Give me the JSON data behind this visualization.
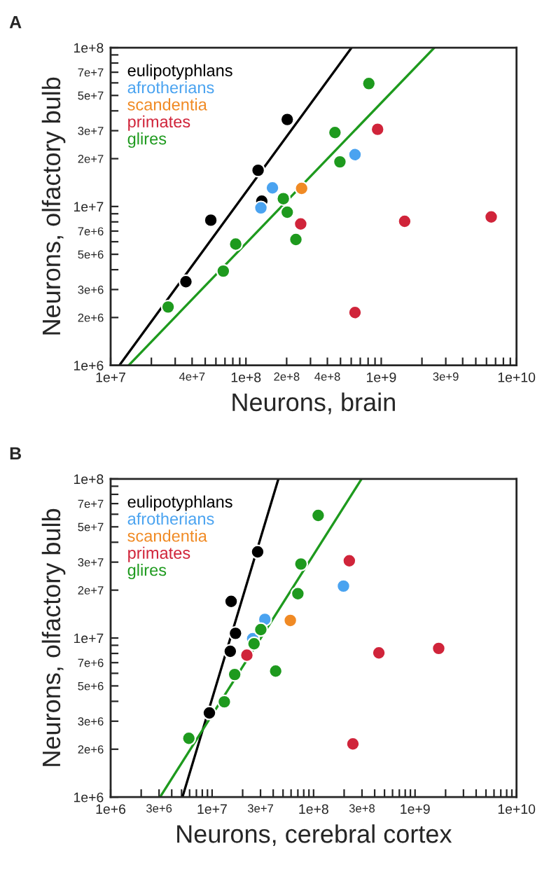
{
  "chart_data": [
    {
      "type": "scatter",
      "title": "A",
      "xlabel": "Neurons, brain",
      "ylabel": "Neurons, olfactory bulb",
      "log": "xy",
      "grid": false,
      "legend": "top left",
      "marker": "circle",
      "xlim": [
        10000000.0,
        10000000000.0
      ],
      "ylim": [
        1000000.0,
        100000000.0
      ],
      "xticks": [
        {
          "value": 10000000.0,
          "label": "1e+7"
        },
        {
          "value": 20000000.0,
          "label": null
        },
        {
          "value": 30000000.0,
          "label": null
        },
        {
          "value": 40000000.0,
          "label": "4e+7"
        },
        {
          "value": 50000000.0,
          "label": null
        },
        {
          "value": 60000000.0,
          "label": null
        },
        {
          "value": 70000000.0,
          "label": null
        },
        {
          "value": 80000000.0,
          "label": null
        },
        {
          "value": 90000000.0,
          "label": null
        },
        {
          "value": 100000000.0,
          "label": "1e+8"
        },
        {
          "value": 200000000.0,
          "label": "2e+8"
        },
        {
          "value": 300000000.0,
          "label": null
        },
        {
          "value": 400000000.0,
          "label": "4e+8"
        },
        {
          "value": 500000000.0,
          "label": null
        },
        {
          "value": 600000000.0,
          "label": null
        },
        {
          "value": 700000000.0,
          "label": null
        },
        {
          "value": 800000000.0,
          "label": null
        },
        {
          "value": 900000000.0,
          "label": null
        },
        {
          "value": 1000000000.0,
          "label": "1e+9"
        },
        {
          "value": 2000000000.0,
          "label": null
        },
        {
          "value": 3000000000.0,
          "label": "3e+9"
        },
        {
          "value": 4000000000.0,
          "label": null
        },
        {
          "value": 5000000000.0,
          "label": null
        },
        {
          "value": 6000000000.0,
          "label": null
        },
        {
          "value": 7000000000.0,
          "label": null
        },
        {
          "value": 8000000000.0,
          "label": null
        },
        {
          "value": 9000000000.0,
          "label": null
        },
        {
          "value": 10000000000.0,
          "label": "1e+10"
        }
      ],
      "yticks": [
        {
          "value": 1000000.0,
          "label": "1e+6"
        },
        {
          "value": 2000000.0,
          "label": "2e+6"
        },
        {
          "value": 3000000.0,
          "label": "3e+6"
        },
        {
          "value": 4000000.0,
          "label": null
        },
        {
          "value": 5000000.0,
          "label": "5e+6"
        },
        {
          "value": 6000000.0,
          "label": null
        },
        {
          "value": 7000000.0,
          "label": "7e+6"
        },
        {
          "value": 8000000.0,
          "label": null
        },
        {
          "value": 9000000.0,
          "label": null
        },
        {
          "value": 10000000.0,
          "label": "1e+7"
        },
        {
          "value": 20000000.0,
          "label": "2e+7"
        },
        {
          "value": 30000000.0,
          "label": "3e+7"
        },
        {
          "value": 40000000.0,
          "label": null
        },
        {
          "value": 50000000.0,
          "label": "5e+7"
        },
        {
          "value": 60000000.0,
          "label": null
        },
        {
          "value": 70000000.0,
          "label": "7e+7"
        },
        {
          "value": 80000000.0,
          "label": null
        },
        {
          "value": 90000000.0,
          "label": null
        },
        {
          "value": 100000000.0,
          "label": "1e+8"
        }
      ],
      "series": [
        {
          "type": "line",
          "marker": "none",
          "color": "#000000",
          "x": [
            11600000.0,
            604000000.0
          ],
          "values": [
            1000000.0,
            100000000.0
          ]
        },
        {
          "type": "line",
          "marker": "none",
          "color": "#1e9a1e",
          "x": [
            13600000.0,
            2470000000.0
          ],
          "values": [
            1000000.0,
            100000000.0
          ]
        },
        {
          "name": "eulipotyphlans",
          "color": "#000000",
          "x": [
            36000000.0,
            55000000.0,
            123000000.0,
            131000000.0,
            202000000.0
          ],
          "values": [
            3360000.0,
            8200000.0,
            16900000.0,
            10800000.0,
            35300000.0
          ]
        },
        {
          "name": "afrotherians",
          "color": "#4aa3f0",
          "x": [
            129000000.0,
            157000000.0,
            640000000.0
          ],
          "values": [
            9800000.0,
            13100000.0,
            21200000.0
          ]
        },
        {
          "name": "scandentia",
          "color": "#f08a24",
          "x": [
            258000000.0
          ],
          "values": [
            13000000.0
          ]
        },
        {
          "name": "primates",
          "color": "#d0243a",
          "x": [
            254000000.0,
            940000000.0,
            1490000000.0,
            6500000000.0,
            640000000.0
          ],
          "values": [
            7760000.0,
            30600000.0,
            8070000.0,
            8600000.0,
            2150000.0
          ]
        },
        {
          "name": "glires",
          "color": "#1e9a1e",
          "x": [
            26600000.0,
            68000000.0,
            84000000.0,
            189000000.0,
            202000000.0,
            234000000.0,
            455000000.0,
            495000000.0,
            810000000.0
          ],
          "values": [
            2330000.0,
            3920000.0,
            5800000.0,
            11200000.0,
            9200000.0,
            6200000.0,
            29200000.0,
            19100000.0,
            59400000.0
          ]
        }
      ]
    },
    {
      "type": "scatter",
      "title": "B",
      "xlabel": "Neurons, cerebral cortex",
      "ylabel": "Neurons, olfactory bulb",
      "log": "xy",
      "grid": false,
      "legend": "top left",
      "marker": "circle",
      "xlim": [
        1000000.0,
        10000000000.0
      ],
      "ylim": [
        1000000.0,
        100000000.0
      ],
      "xticks": [
        {
          "value": 1000000.0,
          "label": "1e+6"
        },
        {
          "value": 2000000.0,
          "label": null
        },
        {
          "value": 3000000.0,
          "label": "3e+6"
        },
        {
          "value": 4000000.0,
          "label": null
        },
        {
          "value": 5000000.0,
          "label": null
        },
        {
          "value": 6000000.0,
          "label": null
        },
        {
          "value": 7000000.0,
          "label": null
        },
        {
          "value": 8000000.0,
          "label": null
        },
        {
          "value": 9000000.0,
          "label": null
        },
        {
          "value": 10000000.0,
          "label": "1e+7"
        },
        {
          "value": 20000000.0,
          "label": null
        },
        {
          "value": 30000000.0,
          "label": "3e+7"
        },
        {
          "value": 40000000.0,
          "label": null
        },
        {
          "value": 50000000.0,
          "label": null
        },
        {
          "value": 60000000.0,
          "label": null
        },
        {
          "value": 70000000.0,
          "label": null
        },
        {
          "value": 80000000.0,
          "label": null
        },
        {
          "value": 90000000.0,
          "label": null
        },
        {
          "value": 100000000.0,
          "label": "1e+8"
        },
        {
          "value": 200000000.0,
          "label": null
        },
        {
          "value": 300000000.0,
          "label": "3e+8"
        },
        {
          "value": 400000000.0,
          "label": null
        },
        {
          "value": 500000000.0,
          "label": null
        },
        {
          "value": 600000000.0,
          "label": null
        },
        {
          "value": 700000000.0,
          "label": null
        },
        {
          "value": 800000000.0,
          "label": null
        },
        {
          "value": 900000000.0,
          "label": null
        },
        {
          "value": 1000000000.0,
          "label": "1e+9"
        },
        {
          "value": 2000000000.0,
          "label": null
        },
        {
          "value": 3000000000.0,
          "label": null
        },
        {
          "value": 4000000000.0,
          "label": null
        },
        {
          "value": 5000000000.0,
          "label": null
        },
        {
          "value": 6000000000.0,
          "label": null
        },
        {
          "value": 7000000000.0,
          "label": null
        },
        {
          "value": 8000000000.0,
          "label": null
        },
        {
          "value": 9000000000.0,
          "label": null
        },
        {
          "value": 10000000000.0,
          "label": "1e+10"
        }
      ],
      "yticks": [
        {
          "value": 1000000.0,
          "label": "1e+6"
        },
        {
          "value": 2000000.0,
          "label": "2e+6"
        },
        {
          "value": 3000000.0,
          "label": "3e+6"
        },
        {
          "value": 4000000.0,
          "label": null
        },
        {
          "value": 5000000.0,
          "label": "5e+6"
        },
        {
          "value": 6000000.0,
          "label": null
        },
        {
          "value": 7000000.0,
          "label": "7e+6"
        },
        {
          "value": 8000000.0,
          "label": null
        },
        {
          "value": 9000000.0,
          "label": null
        },
        {
          "value": 10000000.0,
          "label": "1e+7"
        },
        {
          "value": 20000000.0,
          "label": "2e+7"
        },
        {
          "value": 30000000.0,
          "label": "3e+7"
        },
        {
          "value": 40000000.0,
          "label": null
        },
        {
          "value": 50000000.0,
          "label": "5e+7"
        },
        {
          "value": 60000000.0,
          "label": null
        },
        {
          "value": 70000000.0,
          "label": "7e+7"
        },
        {
          "value": 80000000.0,
          "label": null
        },
        {
          "value": 90000000.0,
          "label": null
        },
        {
          "value": 100000000.0,
          "label": "1e+8"
        }
      ],
      "series": [
        {
          "type": "line",
          "marker": "none",
          "color": "#000000",
          "x": [
            5100000.0,
            45000000.0
          ],
          "values": [
            1000000.0,
            100000000.0
          ]
        },
        {
          "type": "line",
          "marker": "none",
          "color": "#1e9a1e",
          "x": [
            3070000.0,
            297000000.0
          ],
          "values": [
            1000000.0,
            100000000.0
          ]
        },
        {
          "name": "eulipotyphlans",
          "color": "#000000",
          "x": [
            9400000.0,
            15100000.0,
            17000000.0,
            15400000.0,
            28100000.0
          ],
          "values": [
            3380000.0,
            8250000.0,
            10700000.0,
            17000000.0,
            34800000.0
          ]
        },
        {
          "name": "afrotherians",
          "color": "#4aa3f0",
          "x": [
            25100000.0,
            33100000.0,
            197000000.0
          ],
          "values": [
            9900000.0,
            13100000.0,
            21200000.0
          ]
        },
        {
          "name": "scandentia",
          "color": "#f08a24",
          "x": [
            59000000.0
          ],
          "values": [
            12900000.0
          ]
        },
        {
          "name": "primates",
          "color": "#d0243a",
          "x": [
            22000000.0,
            225000000.0,
            440000000.0,
            1710000000.0,
            244000000.0
          ],
          "values": [
            7800000.0,
            30600000.0,
            8070000.0,
            8600000.0,
            2160000.0
          ]
        },
        {
          "name": "glires",
          "color": "#1e9a1e",
          "x": [
            5900000.0,
            13200000.0,
            16700000.0,
            30200000.0,
            25900000.0,
            42300000.0,
            75000000.0,
            70000000.0,
            111000000.0
          ],
          "values": [
            2340000.0,
            3970000.0,
            5900000.0,
            11300000.0,
            9200000.0,
            6200000.0,
            29200000.0,
            19000000.0,
            59000000.0
          ]
        }
      ]
    }
  ]
}
